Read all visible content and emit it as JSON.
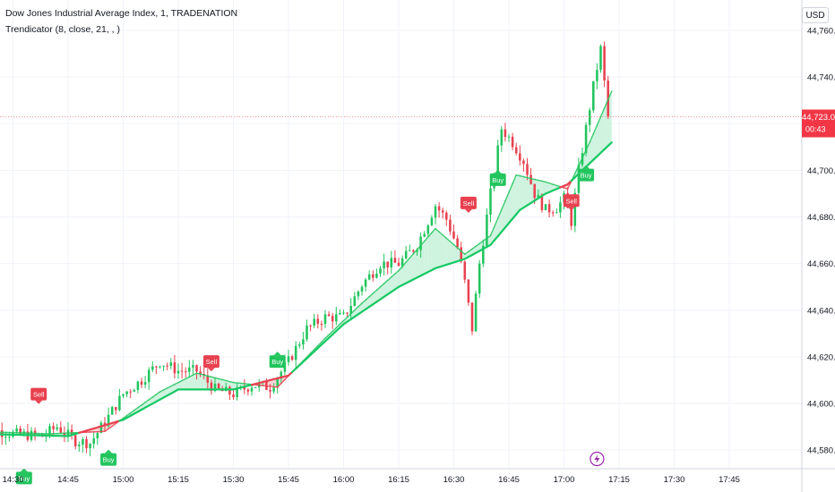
{
  "header": {
    "title": "Dow Jones Industrial Average Index, 1, TRADENATION",
    "indicator": "Trendicator (8, close, 21, , )"
  },
  "currency_button": {
    "label": "USD"
  },
  "price_tag": {
    "price": "44,723.0",
    "countdown": "00:43"
  },
  "colors": {
    "up": "#22c55e",
    "down": "#e8414f",
    "fast_line_up": "#22c55e",
    "slow_line": "#16c964",
    "fill_up": "#c9f2dc",
    "fill_down": "#f6cfd2",
    "grid": "#f0f3fa",
    "axis_text": "#131722",
    "price_line": "#f26d7a",
    "price_tag_bg": "#f23645",
    "icon": "#9c27b0"
  },
  "icons": {
    "bottom_marker": "lightning-bolt-icon"
  },
  "chart_data": {
    "type": "candlestick",
    "x_tick_labels": [
      "14:30",
      "14:45",
      "15:00",
      "15:15",
      "15:30",
      "15:45",
      "16:00",
      "16:15",
      "16:30",
      "16:45",
      "17:00",
      "17:15",
      "17:30",
      "17:45"
    ],
    "y_tick_labels": [
      "44,580.0",
      "44,600.0",
      "44,620.0",
      "44,640.0",
      "44,660.0",
      "44,680.0",
      "44,700.0",
      "44,720.0",
      "44,740.0",
      "44,760.0"
    ],
    "y_ticks": [
      44580,
      44600,
      44620,
      44640,
      44660,
      44680,
      44700,
      44720,
      44740,
      44760
    ],
    "ylim": [
      44572,
      44770
    ],
    "last_price": 44723.0,
    "anchors": [
      {
        "t": "14:20",
        "c": 44590
      },
      {
        "t": "14:30",
        "c": 44587
      },
      {
        "t": "14:38",
        "c": 44586
      },
      {
        "t": "14:42",
        "c": 44590
      },
      {
        "t": "14:47",
        "c": 44584
      },
      {
        "t": "14:51",
        "c": 44583
      },
      {
        "t": "14:55",
        "c": 44592
      },
      {
        "t": "15:00",
        "c": 44604
      },
      {
        "t": "15:05",
        "c": 44610
      },
      {
        "t": "15:10",
        "c": 44618
      },
      {
        "t": "15:15",
        "c": 44614
      },
      {
        "t": "15:20",
        "c": 44614
      },
      {
        "t": "15:25",
        "c": 44606
      },
      {
        "t": "15:30",
        "c": 44604
      },
      {
        "t": "15:35",
        "c": 44608
      },
      {
        "t": "15:40",
        "c": 44607
      },
      {
        "t": "15:45",
        "c": 44618
      },
      {
        "t": "15:50",
        "c": 44632
      },
      {
        "t": "15:55",
        "c": 44637
      },
      {
        "t": "16:00",
        "c": 44637
      },
      {
        "t": "16:05",
        "c": 44651
      },
      {
        "t": "16:10",
        "c": 44660
      },
      {
        "t": "16:15",
        "c": 44660
      },
      {
        "t": "16:20",
        "c": 44668
      },
      {
        "t": "16:25",
        "c": 44685
      },
      {
        "t": "16:28",
        "c": 44679
      },
      {
        "t": "16:31",
        "c": 44667
      },
      {
        "t": "16:33",
        "c": 44652
      },
      {
        "t": "16:35",
        "c": 44632
      },
      {
        "t": "16:37",
        "c": 44660
      },
      {
        "t": "16:40",
        "c": 44690
      },
      {
        "t": "16:43",
        "c": 44718
      },
      {
        "t": "16:46",
        "c": 44712
      },
      {
        "t": "16:49",
        "c": 44704
      },
      {
        "t": "16:52",
        "c": 44690
      },
      {
        "t": "16:55",
        "c": 44683
      },
      {
        "t": "16:58",
        "c": 44684
      },
      {
        "t": "17:00",
        "c": 44688
      },
      {
        "t": "17:02",
        "c": 44678
      },
      {
        "t": "17:04",
        "c": 44700
      },
      {
        "t": "17:06",
        "c": 44718
      },
      {
        "t": "17:08",
        "c": 44736
      },
      {
        "t": "17:10",
        "c": 44752
      },
      {
        "t": "17:12",
        "c": 44723
      }
    ],
    "fast_line": [
      {
        "t": "14:20",
        "v": 44588
      },
      {
        "t": "14:40",
        "v": 44587
      },
      {
        "t": "14:55",
        "v": 44588
      },
      {
        "t": "15:10",
        "v": 44605
      },
      {
        "t": "15:20",
        "v": 44613
      },
      {
        "t": "15:30",
        "v": 44609
      },
      {
        "t": "15:42",
        "v": 44607
      },
      {
        "t": "15:55",
        "v": 44628
      },
      {
        "t": "16:05",
        "v": 44643
      },
      {
        "t": "16:15",
        "v": 44657
      },
      {
        "t": "16:25",
        "v": 44675
      },
      {
        "t": "16:33",
        "v": 44664
      },
      {
        "t": "16:40",
        "v": 44672
      },
      {
        "t": "16:47",
        "v": 44698
      },
      {
        "t": "16:55",
        "v": 44695
      },
      {
        "t": "17:01",
        "v": 44692
      },
      {
        "t": "17:07",
        "v": 44712
      },
      {
        "t": "17:13",
        "v": 44734
      }
    ],
    "slow_line": [
      {
        "t": "14:20",
        "v": 44587
      },
      {
        "t": "14:45",
        "v": 44586
      },
      {
        "t": "15:00",
        "v": 44593
      },
      {
        "t": "15:15",
        "v": 44606
      },
      {
        "t": "15:30",
        "v": 44606
      },
      {
        "t": "15:45",
        "v": 44612
      },
      {
        "t": "16:00",
        "v": 44634
      },
      {
        "t": "16:15",
        "v": 44650
      },
      {
        "t": "16:25",
        "v": 44658
      },
      {
        "t": "16:33",
        "v": 44662
      },
      {
        "t": "16:40",
        "v": 44668
      },
      {
        "t": "16:48",
        "v": 44683
      },
      {
        "t": "16:55",
        "v": 44690
      },
      {
        "t": "17:01",
        "v": 44694
      },
      {
        "t": "17:07",
        "v": 44703
      },
      {
        "t": "17:13",
        "v": 44712
      }
    ],
    "signals": [
      {
        "type": "sell",
        "label": "Sell",
        "t": "14:37",
        "price": 44604
      },
      {
        "type": "buy",
        "label": "Buy",
        "t": "14:33",
        "price": 44568
      },
      {
        "type": "buy",
        "label": "Buy",
        "t": "14:56",
        "price": 44576
      },
      {
        "type": "sell",
        "label": "Sell",
        "t": "15:24",
        "price": 44618
      },
      {
        "type": "buy",
        "label": "Buy",
        "t": "15:42",
        "price": 44618
      },
      {
        "type": "sell",
        "label": "Sell",
        "t": "16:34",
        "price": 44686
      },
      {
        "type": "buy",
        "label": "Buy",
        "t": "16:42",
        "price": 44696
      },
      {
        "type": "sell",
        "label": "Sell",
        "t": "17:02",
        "price": 44687
      },
      {
        "type": "buy",
        "label": "Buy",
        "t": "17:06",
        "price": 44698
      }
    ]
  }
}
